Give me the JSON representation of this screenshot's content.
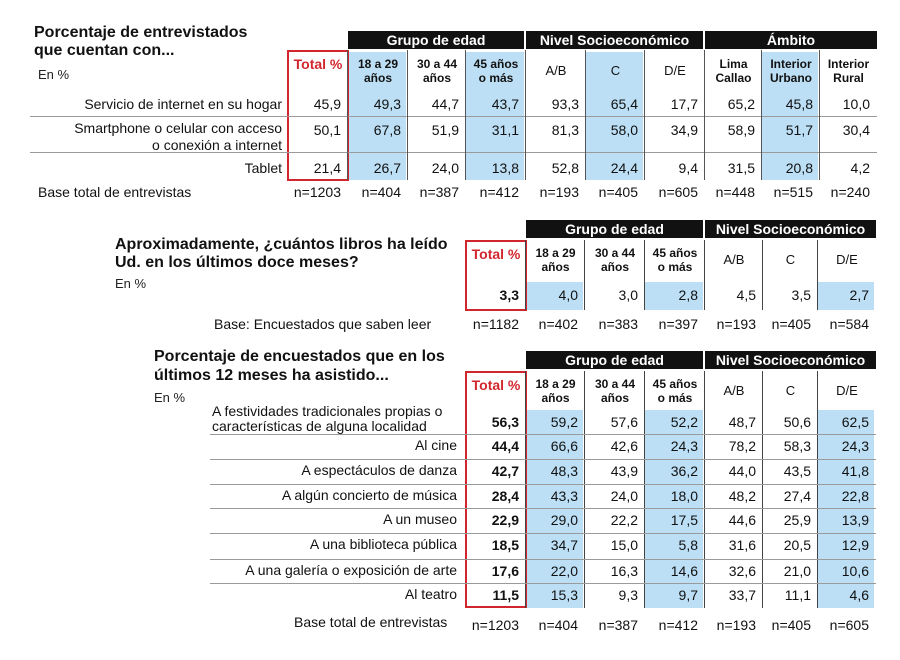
{
  "t1": {
    "title_line1": "Porcentaje de entrevistados",
    "title_line2": "que cuentan con...",
    "unit": "En %",
    "groups": [
      "Grupo de edad",
      "Nivel Socioeconómico",
      "Ámbito"
    ],
    "col_total": "Total %",
    "cols": [
      [
        "18 a 29",
        "años"
      ],
      [
        "30 a 44",
        "años"
      ],
      [
        "45 años",
        "o más"
      ],
      [
        "A/B"
      ],
      [
        "C"
      ],
      [
        "D/E"
      ],
      [
        "Lima",
        "Callao"
      ],
      [
        "Interior",
        "Urbano"
      ],
      [
        "Interior",
        "Rural"
      ]
    ],
    "rows": [
      {
        "label": [
          "Servicio de internet en su hogar"
        ],
        "values": [
          "45,9",
          "49,3",
          "44,7",
          "43,7",
          "93,3",
          "65,4",
          "17,7",
          "65,2",
          "45,8",
          "10,0"
        ]
      },
      {
        "label": [
          "Smartphone o celular con acceso",
          "o conexión a internet"
        ],
        "values": [
          "50,1",
          "67,8",
          "51,9",
          "31,1",
          "81,3",
          "58,0",
          "34,9",
          "58,9",
          "51,7",
          "30,4"
        ]
      },
      {
        "label": [
          "Tablet"
        ],
        "values": [
          "21,4",
          "26,7",
          "24,0",
          "13,8",
          "52,8",
          "24,4",
          "9,4",
          "31,5",
          "20,8",
          "4,2"
        ]
      }
    ],
    "base_label": "Base total de entrevistas",
    "base_values": [
      "n=1203",
      "n=404",
      "n=387",
      "n=412",
      "n=193",
      "n=405",
      "n=605",
      "n=448",
      "n=515",
      "n=240"
    ]
  },
  "t2": {
    "title_line1": "Aproximadamente, ¿cuántos libros ha leído",
    "title_line2": "Ud. en los últimos doce meses?",
    "unit": "En %",
    "groups": [
      "Grupo de edad",
      "Nivel Socioeconómico"
    ],
    "col_total": "Total %",
    "cols": [
      [
        "18 a 29",
        "años"
      ],
      [
        "30 a 44",
        "años"
      ],
      [
        "45 años",
        "o más"
      ],
      [
        "A/B"
      ],
      [
        "C"
      ],
      [
        "D/E"
      ]
    ],
    "values": [
      "3,3",
      "4,0",
      "3,0",
      "2,8",
      "4,5",
      "3,5",
      "2,7"
    ],
    "base_label": "Base: Encuestados que saben leer",
    "base_values": [
      "n=1182",
      "n=402",
      "n=383",
      "n=397",
      "n=193",
      "n=405",
      "n=584"
    ]
  },
  "t3": {
    "title_line1": "Porcentaje de encuestados que en los",
    "title_line2": "últimos 12 meses ha asistido...",
    "unit": "En %",
    "groups": [
      "Grupo de edad",
      "Nivel Socioeconómico"
    ],
    "col_total": "Total %",
    "cols": [
      [
        "18 a 29",
        "años"
      ],
      [
        "30 a 44",
        "años"
      ],
      [
        "45 años",
        "o más"
      ],
      [
        "A/B"
      ],
      [
        "C"
      ],
      [
        "D/E"
      ]
    ],
    "rows": [
      {
        "label": [
          "A festividades tradicionales propias o",
          "características de alguna localidad"
        ],
        "values": [
          "56,3",
          "59,2",
          "57,6",
          "52,2",
          "48,7",
          "50,6",
          "62,5"
        ]
      },
      {
        "label": [
          "Al cine"
        ],
        "values": [
          "44,4",
          "66,6",
          "42,6",
          "24,3",
          "78,2",
          "58,3",
          "24,3"
        ]
      },
      {
        "label": [
          "A espectáculos de danza"
        ],
        "values": [
          "42,7",
          "48,3",
          "43,9",
          "36,2",
          "44,0",
          "43,5",
          "41,8"
        ]
      },
      {
        "label": [
          "A algún concierto de música"
        ],
        "values": [
          "28,4",
          "43,3",
          "24,0",
          "18,0",
          "48,2",
          "27,4",
          "22,8"
        ]
      },
      {
        "label": [
          "A un museo"
        ],
        "values": [
          "22,9",
          "29,0",
          "22,2",
          "17,5",
          "44,6",
          "25,9",
          "13,9"
        ]
      },
      {
        "label": [
          "A una biblioteca pública"
        ],
        "values": [
          "18,5",
          "34,7",
          "15,0",
          "5,8",
          "31,6",
          "20,5",
          "12,9"
        ]
      },
      {
        "label": [
          "A una galería o exposición de arte"
        ],
        "values": [
          "17,6",
          "22,0",
          "16,3",
          "14,6",
          "32,6",
          "21,0",
          "10,6"
        ]
      },
      {
        "label": [
          "Al teatro"
        ],
        "values": [
          "11,5",
          "15,3",
          "9,3",
          "9,7",
          "33,7",
          "11,1",
          "4,6"
        ]
      }
    ],
    "base_label": "Base total de entrevistas",
    "base_values": [
      "n=1203",
      "n=404",
      "n=387",
      "n=412",
      "n=193",
      "n=405",
      "n=605"
    ]
  }
}
